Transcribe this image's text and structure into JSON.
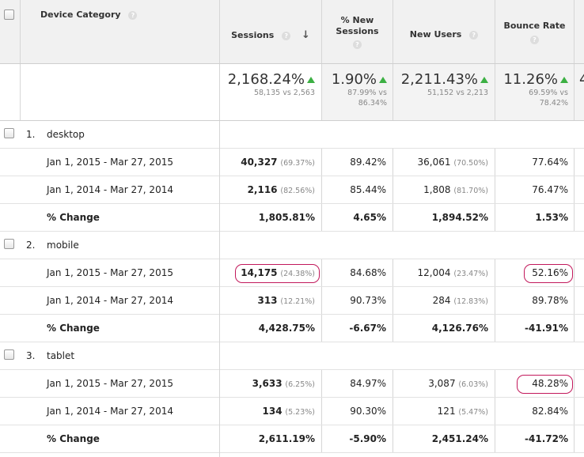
{
  "columns": {
    "device_category": "Device Category",
    "sessions": "Sessions",
    "pct_new_sessions": [
      "% New",
      "Sessions"
    ],
    "new_users": "New Users",
    "bounce_rate": "Bounce Rate",
    "help": "?"
  },
  "summary": {
    "sessions": {
      "value": "2,168.24%",
      "detail": "58,135 vs 2,563"
    },
    "pct_new_sessions": {
      "value": "1.90%",
      "detail1": "87.99% vs",
      "detail2": "86.34%"
    },
    "new_users": {
      "value": "2,211.43%",
      "detail": "51,152 vs 2,213"
    },
    "bounce_rate": {
      "value": "11.26%",
      "detail1": "69.59% vs",
      "detail2": "78.42%"
    },
    "next_col_partial": "4"
  },
  "groups": [
    {
      "index": "1.",
      "name": "desktop",
      "rows": [
        {
          "label": "Jan 1, 2015 - Mar 27, 2015",
          "sessions": "40,327",
          "sessions_pct": "(69.37%)",
          "new_sessions": "89.42%",
          "new_users": "36,061",
          "new_users_pct": "(70.50%)",
          "bounce": "77.64%"
        },
        {
          "label": "Jan 1, 2014 - Mar 27, 2014",
          "sessions": "2,116",
          "sessions_pct": "(82.56%)",
          "new_sessions": "85.44%",
          "new_users": "1,808",
          "new_users_pct": "(81.70%)",
          "bounce": "76.47%"
        },
        {
          "label": "% Change",
          "sessions": "1,805.81%",
          "new_sessions": "4.65%",
          "new_users": "1,894.52%",
          "bounce": "1.53%"
        }
      ]
    },
    {
      "index": "2.",
      "name": "mobile",
      "rows": [
        {
          "label": "Jan 1, 2015 - Mar 27, 2015",
          "sessions": "14,175",
          "sessions_pct": "(24.38%)",
          "new_sessions": "84.68%",
          "new_users": "12,004",
          "new_users_pct": "(23.47%)",
          "bounce": "52.16%"
        },
        {
          "label": "Jan 1, 2014 - Mar 27, 2014",
          "sessions": "313",
          "sessions_pct": "(12.21%)",
          "new_sessions": "90.73%",
          "new_users": "284",
          "new_users_pct": "(12.83%)",
          "bounce": "89.78%"
        },
        {
          "label": "% Change",
          "sessions": "4,428.75%",
          "new_sessions": "-6.67%",
          "new_users": "4,126.76%",
          "bounce": "-41.91%"
        }
      ]
    },
    {
      "index": "3.",
      "name": "tablet",
      "rows": [
        {
          "label": "Jan 1, 2015 - Mar 27, 2015",
          "sessions": "3,633",
          "sessions_pct": "(6.25%)",
          "new_sessions": "84.97%",
          "new_users": "3,087",
          "new_users_pct": "(6.03%)",
          "bounce": "48.28%"
        },
        {
          "label": "Jan 1, 2014 - Mar 27, 2014",
          "sessions": "134",
          "sessions_pct": "(5.23%)",
          "new_sessions": "90.30%",
          "new_users": "121",
          "new_users_pct": "(5.47%)",
          "bounce": "82.84%"
        },
        {
          "label": "% Change",
          "sessions": "2,611.19%",
          "new_sessions": "-5.90%",
          "new_users": "2,451.24%",
          "bounce": "-41.72%"
        }
      ]
    }
  ],
  "colors": {
    "highlight": "#c2185b",
    "up_arrow": "#3cb043"
  }
}
